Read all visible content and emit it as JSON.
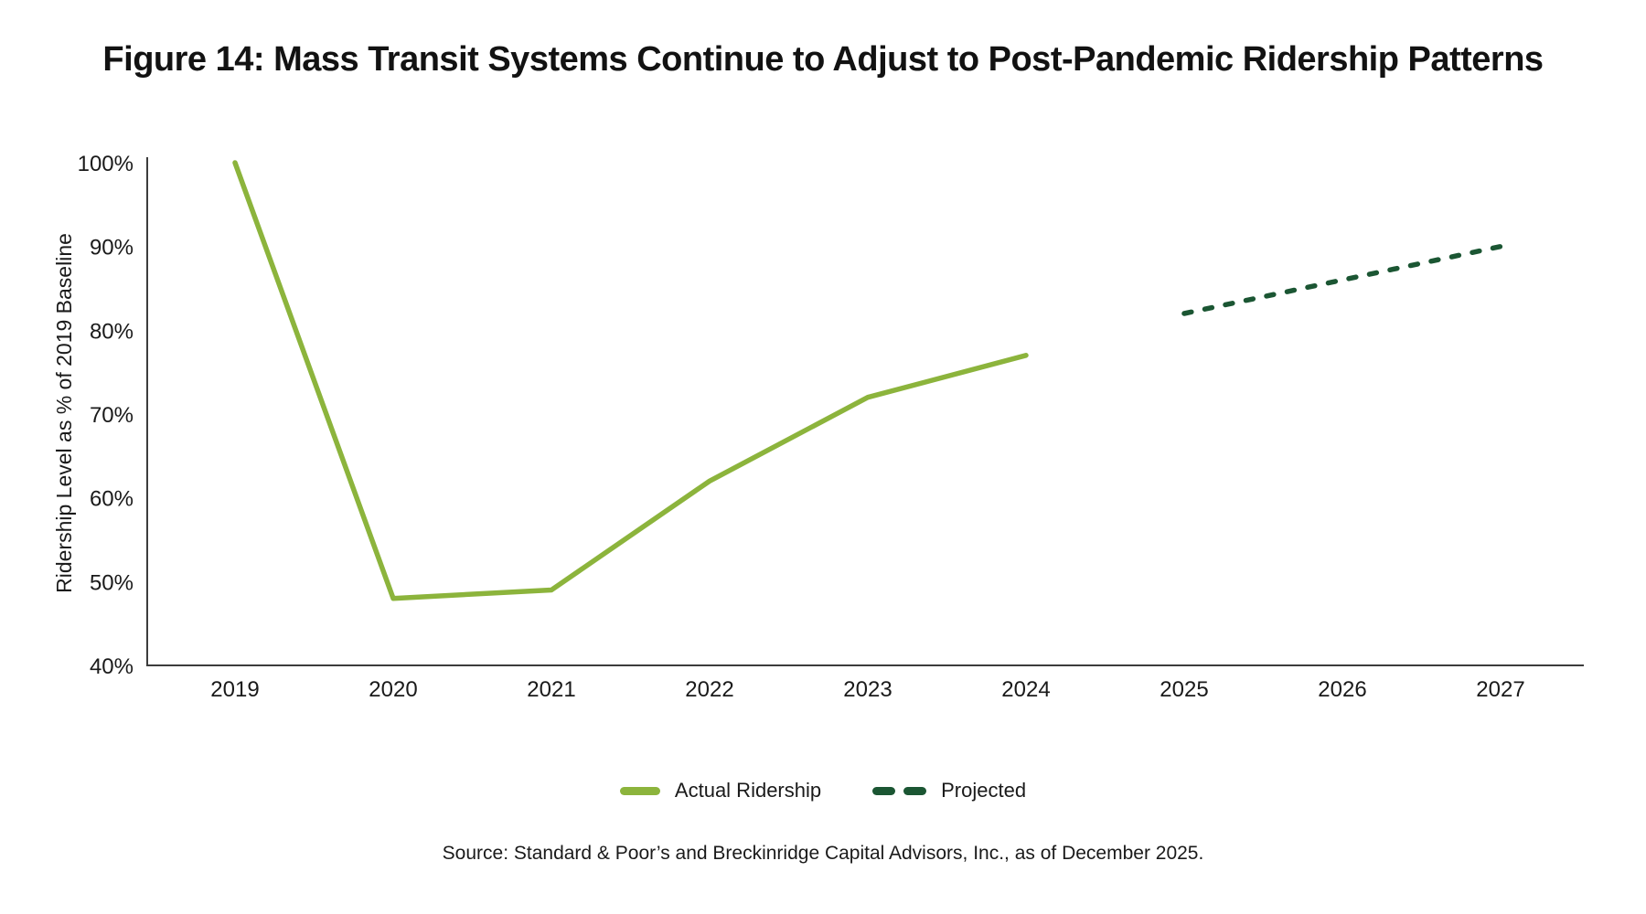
{
  "figure": {
    "title": "Figure 14: Mass Transit Systems Continue to Adjust to Post-Pandemic Ridership Patterns",
    "source": "Source: Standard & Poor’s and Breckinridge Capital Advisors, Inc., as of December 2025."
  },
  "legend": {
    "actual_label": "Actual Ridership",
    "projected_label": "Projected"
  },
  "colors": {
    "actual": "#8CB43C",
    "projected": "#1B5633",
    "axis": "#3C3C3C",
    "text": "#1A1A1A"
  },
  "chart_data": {
    "type": "line",
    "x": [
      2019,
      2020,
      2021,
      2022,
      2023,
      2024,
      2025,
      2026,
      2027
    ],
    "series": [
      {
        "name": "Actual Ridership",
        "style": "solid",
        "color_key": "actual",
        "values": [
          100,
          48,
          49,
          62,
          72,
          77,
          null,
          null,
          null
        ]
      },
      {
        "name": "Projected",
        "style": "dashed",
        "color_key": "projected",
        "values": [
          null,
          null,
          null,
          null,
          null,
          null,
          82,
          86,
          90
        ]
      }
    ],
    "title": "Figure 14: Mass Transit Systems Continue to Adjust to Post-Pandemic Ridership Patterns",
    "xlabel": "",
    "ylabel": "Ridership Level as % of 2019 Baseline",
    "ylim": [
      40,
      100
    ],
    "yticks": [
      40,
      50,
      60,
      70,
      80,
      90,
      100
    ],
    "ytick_suffix": "%",
    "grid": false,
    "legend_position": "bottom"
  }
}
